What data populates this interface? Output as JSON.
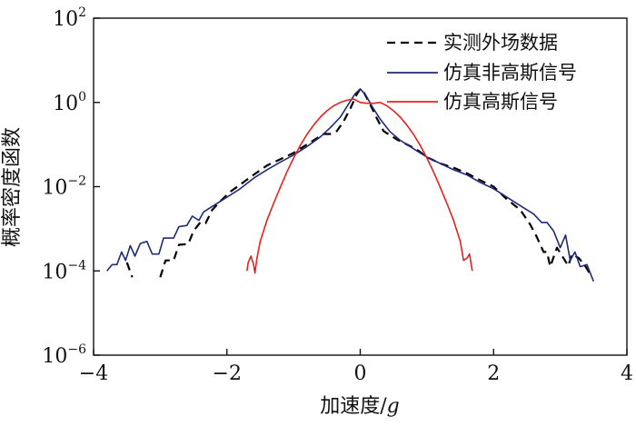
{
  "chart_data": {
    "type": "line",
    "xlabel_text": "加速度/",
    "xlabel_var": "g",
    "ylabel": "概率密度函数",
    "xlim": [
      -4,
      4
    ],
    "ylim_log10": [
      -6,
      2
    ],
    "yscale": "log",
    "x_ticks": [
      {
        "value": -4,
        "label": "−4"
      },
      {
        "value": -2,
        "label": "−2"
      },
      {
        "value": 0,
        "label": "0"
      },
      {
        "value": 2,
        "label": "2"
      },
      {
        "value": 4,
        "label": "4"
      }
    ],
    "y_ticks": [
      {
        "exp": 2,
        "base": "10",
        "sup": "2"
      },
      {
        "exp": 0,
        "base": "10",
        "sup": "0"
      },
      {
        "exp": -2,
        "base": "10",
        "sup": "−2"
      },
      {
        "exp": -4,
        "base": "10",
        "sup": "−4"
      },
      {
        "exp": -6,
        "base": "10",
        "sup": "−6"
      }
    ],
    "legend_position": "top-right",
    "series": [
      {
        "name": "实测外场数据",
        "color": "#000000",
        "style": "dashed",
        "segments": [
          [
            [
              -3.5,
              -3.8
            ],
            [
              -3.42,
              -4.15
            ]
          ],
          [
            [
              -3.0,
              -4.15
            ],
            [
              -2.92,
              -3.75
            ],
            [
              -2.8,
              -3.75
            ],
            [
              -2.72,
              -3.38
            ],
            [
              -2.58,
              -3.36
            ],
            [
              -2.5,
              -3.05
            ],
            [
              -2.4,
              -2.85
            ],
            [
              -2.32,
              -2.87
            ],
            [
              -2.22,
              -2.55
            ],
            [
              -2.1,
              -2.35
            ],
            [
              -1.95,
              -2.12
            ],
            [
              -1.8,
              -1.95
            ],
            [
              -1.6,
              -1.72
            ],
            [
              -1.4,
              -1.5
            ],
            [
              -1.2,
              -1.35
            ],
            [
              -1.0,
              -1.2
            ],
            [
              -0.85,
              -1.05
            ],
            [
              -0.7,
              -0.9
            ],
            [
              -0.55,
              -0.75
            ],
            [
              -0.45,
              -0.75
            ],
            [
              -0.35,
              -0.68
            ],
            [
              -0.25,
              -0.45
            ],
            [
              -0.15,
              -0.15
            ],
            [
              -0.05,
              0.2
            ],
            [
              0.0,
              0.32
            ],
            [
              0.05,
              0.25
            ],
            [
              0.15,
              -0.05
            ],
            [
              0.25,
              -0.38
            ],
            [
              0.35,
              -0.68
            ],
            [
              0.45,
              -0.78
            ],
            [
              0.55,
              -0.88
            ],
            [
              0.7,
              -1.0
            ],
            [
              0.85,
              -1.12
            ],
            [
              1.0,
              -1.3
            ],
            [
              1.2,
              -1.45
            ],
            [
              1.4,
              -1.55
            ],
            [
              1.6,
              -1.68
            ],
            [
              1.8,
              -1.85
            ],
            [
              2.0,
              -2.0
            ],
            [
              2.2,
              -2.3
            ],
            [
              2.4,
              -2.55
            ],
            [
              2.55,
              -2.9
            ],
            [
              2.65,
              -3.2
            ],
            [
              2.75,
              -3.55
            ],
            [
              2.8,
              -3.55
            ],
            [
              2.85,
              -3.9
            ],
            [
              2.95,
              -3.45
            ],
            [
              3.05,
              -3.7
            ],
            [
              3.12,
              -3.88
            ],
            [
              3.18,
              -3.6
            ],
            [
              3.28,
              -3.7
            ],
            [
              3.38,
              -3.9
            ],
            [
              3.48,
              -4.15
            ]
          ]
        ]
      },
      {
        "name": "仿真非高斯信号",
        "color": "#1f2a7a",
        "style": "solid",
        "segments": [
          [
            [
              -3.8,
              -4.0
            ],
            [
              -3.72,
              -3.85
            ],
            [
              -3.65,
              -3.85
            ],
            [
              -3.58,
              -3.55
            ],
            [
              -3.52,
              -3.75
            ],
            [
              -3.45,
              -3.4
            ],
            [
              -3.38,
              -3.65
            ],
            [
              -3.3,
              -3.35
            ],
            [
              -3.2,
              -3.3
            ],
            [
              -3.12,
              -3.6
            ],
            [
              -3.02,
              -3.6
            ],
            [
              -2.95,
              -3.22
            ],
            [
              -2.8,
              -3.22
            ],
            [
              -2.72,
              -2.95
            ],
            [
              -2.6,
              -2.92
            ],
            [
              -2.52,
              -2.7
            ],
            [
              -2.42,
              -2.8
            ],
            [
              -2.35,
              -2.6
            ],
            [
              -2.25,
              -2.5
            ],
            [
              -2.1,
              -2.35
            ],
            [
              -1.95,
              -2.2
            ],
            [
              -1.8,
              -2.05
            ],
            [
              -1.6,
              -1.8
            ],
            [
              -1.4,
              -1.6
            ],
            [
              -1.2,
              -1.42
            ],
            [
              -1.0,
              -1.25
            ],
            [
              -0.8,
              -1.05
            ],
            [
              -0.6,
              -0.82
            ],
            [
              -0.45,
              -0.6
            ],
            [
              -0.3,
              -0.35
            ],
            [
              -0.18,
              -0.05
            ],
            [
              -0.08,
              0.2
            ],
            [
              0.0,
              0.32
            ],
            [
              0.08,
              0.18
            ],
            [
              0.18,
              -0.1
            ],
            [
              0.3,
              -0.4
            ],
            [
              0.45,
              -0.7
            ],
            [
              0.6,
              -0.9
            ],
            [
              0.8,
              -1.1
            ],
            [
              1.0,
              -1.3
            ],
            [
              1.2,
              -1.45
            ],
            [
              1.4,
              -1.6
            ],
            [
              1.6,
              -1.72
            ],
            [
              1.8,
              -1.9
            ],
            [
              2.0,
              -2.05
            ],
            [
              2.2,
              -2.25
            ],
            [
              2.4,
              -2.45
            ],
            [
              2.6,
              -2.65
            ],
            [
              2.72,
              -2.85
            ],
            [
              2.8,
              -2.85
            ],
            [
              2.9,
              -3.05
            ],
            [
              3.0,
              -3.45
            ],
            [
              3.08,
              -3.15
            ],
            [
              3.15,
              -3.75
            ],
            [
              3.22,
              -3.55
            ],
            [
              3.3,
              -3.9
            ],
            [
              3.4,
              -3.85
            ],
            [
              3.5,
              -4.25
            ]
          ]
        ]
      },
      {
        "name": "仿真高斯信号",
        "color": "#e8201f",
        "style": "solid",
        "segments": [
          [
            [
              -1.7,
              -4.0
            ],
            [
              -1.68,
              -3.8
            ],
            [
              -1.64,
              -3.65
            ],
            [
              -1.6,
              -3.85
            ],
            [
              -1.58,
              -4.05
            ],
            [
              -1.55,
              -3.7
            ],
            [
              -1.5,
              -3.3
            ],
            [
              -1.4,
              -2.8
            ],
            [
              -1.3,
              -2.4
            ],
            [
              -1.2,
              -2.02
            ],
            [
              -1.1,
              -1.65
            ],
            [
              -1.0,
              -1.32
            ],
            [
              -0.9,
              -1.02
            ],
            [
              -0.8,
              -0.76
            ],
            [
              -0.7,
              -0.54
            ],
            [
              -0.6,
              -0.35
            ],
            [
              -0.5,
              -0.2
            ],
            [
              -0.4,
              -0.08
            ],
            [
              -0.3,
              0.0
            ],
            [
              -0.2,
              0.05
            ],
            [
              -0.1,
              0.08
            ],
            [
              0.0,
              0.0
            ],
            [
              0.1,
              -0.02
            ],
            [
              0.2,
              -0.02
            ],
            [
              0.3,
              0.0
            ],
            [
              0.4,
              -0.08
            ],
            [
              0.5,
              -0.2
            ],
            [
              0.6,
              -0.35
            ],
            [
              0.7,
              -0.54
            ],
            [
              0.8,
              -0.76
            ],
            [
              0.9,
              -1.02
            ],
            [
              1.0,
              -1.32
            ],
            [
              1.1,
              -1.65
            ],
            [
              1.2,
              -2.02
            ],
            [
              1.3,
              -2.4
            ],
            [
              1.4,
              -2.8
            ],
            [
              1.5,
              -3.3
            ],
            [
              1.55,
              -3.75
            ],
            [
              1.6,
              -3.7
            ],
            [
              1.64,
              -3.6
            ],
            [
              1.68,
              -4.0
            ]
          ]
        ]
      }
    ]
  }
}
